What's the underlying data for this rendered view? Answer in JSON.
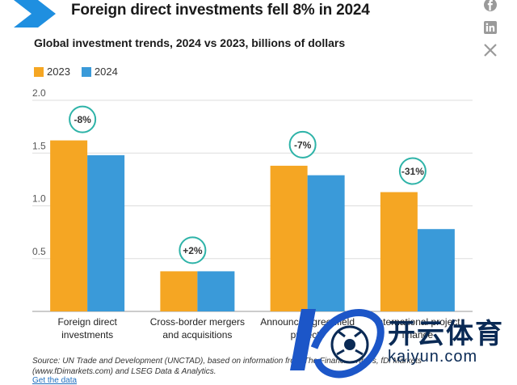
{
  "header": {
    "title": "Foreign direct investments fell 8% in 2024",
    "subtitle": "Global investment trends, 2024 vs 2023, billions of dollars"
  },
  "social": {
    "icons": [
      "facebook-icon",
      "linkedin-icon",
      "x-icon"
    ]
  },
  "colors": {
    "series_2023": "#F5A623",
    "series_2024": "#3A9AD9",
    "badge_ring": "#2EB3A8",
    "chevron": "#1F8FE0"
  },
  "chart_data": {
    "type": "bar",
    "title": "Foreign direct investments fell 8% in 2024",
    "subtitle": "Global investment trends, 2024 vs 2023, billions of dollars",
    "categories": [
      "Foreign direct investments",
      "Cross-border mergers and acquisitions",
      "Announced greenfield projects",
      "International project finance"
    ],
    "category_label_lines": [
      [
        "Foreign direct",
        "investments"
      ],
      [
        "Cross-border mergers",
        "and acquisitions"
      ],
      [
        "Announced greenfield",
        "projects"
      ],
      [
        "International project",
        "finance"
      ]
    ],
    "series": [
      {
        "name": "2023",
        "values": [
          1.62,
          0.38,
          1.38,
          1.13
        ]
      },
      {
        "name": "2024",
        "values": [
          1.48,
          0.38,
          1.29,
          0.78
        ]
      }
    ],
    "annotations": [
      "-8%",
      "+2%",
      "-7%",
      "-31%"
    ],
    "yticks": [
      "2.0",
      "1.5",
      "1.0",
      "0.5"
    ],
    "ytick_values": [
      2.0,
      1.5,
      1.0,
      0.5
    ],
    "ylim": [
      0,
      2.0
    ],
    "grid": true,
    "legend_position": "top-left"
  },
  "source": {
    "text": "Source: UN Trade and Development (UNCTAD), based on information from The Financial Times, fDi Markets (www.fDimarkets.com) and LSEG Data & Analytics.",
    "link": "Get the data"
  },
  "watermark": {
    "cn": "开云体育",
    "en": "kaiyun.com"
  }
}
